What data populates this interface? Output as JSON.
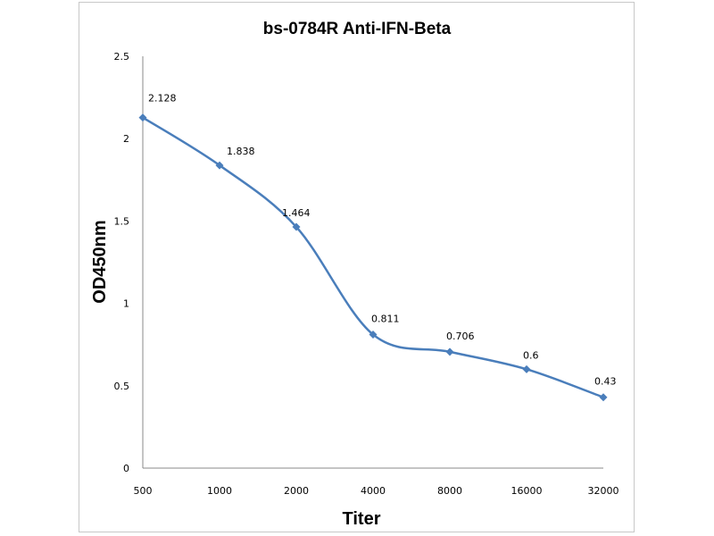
{
  "chart_data": {
    "type": "line",
    "title": "bs-0784R Anti-IFN-Beta",
    "xlabel": "Titer",
    "ylabel": "OD450nm",
    "categories": [
      "500",
      "1000",
      "2000",
      "4000",
      "8000",
      "16000",
      "32000"
    ],
    "series": [
      {
        "name": "OD450nm",
        "values": [
          2.128,
          1.838,
          1.464,
          0.811,
          0.706,
          0.6,
          0.43
        ],
        "labels": [
          "2.128",
          "1.838",
          "1.464",
          "0.811",
          "0.706",
          "0.6",
          "0.43"
        ],
        "color": "#4a7ebb"
      }
    ],
    "ylim": [
      0,
      2.5
    ],
    "yticks": [
      "0",
      "0.5",
      "1",
      "1.5",
      "2",
      "2.5"
    ],
    "grid": false,
    "legend": "none"
  }
}
